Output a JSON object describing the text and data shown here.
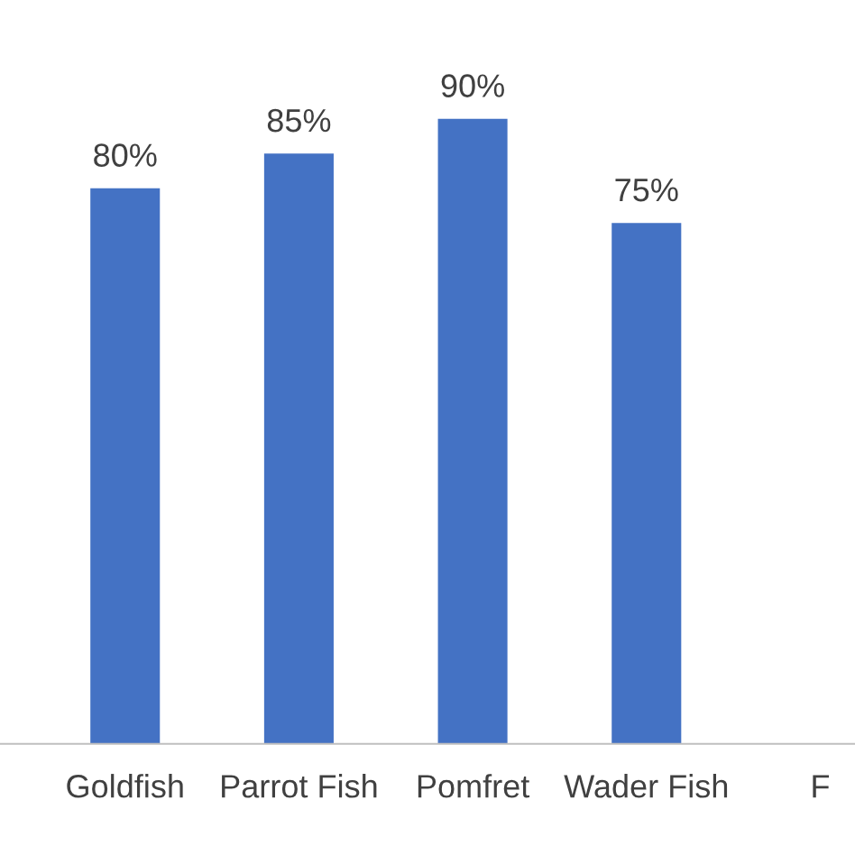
{
  "chart_data": {
    "type": "bar",
    "categories": [
      "Goldfish",
      "Parrot Fish",
      "Pomfret",
      "Wader Fish",
      "F"
    ],
    "values": [
      80,
      85,
      90,
      75,
      null
    ],
    "value_labels": [
      "80%",
      "85%",
      "90%",
      "75%",
      null
    ],
    "color": "#4472c4",
    "tick_labels": "x",
    "grid": false,
    "legend": false
  }
}
